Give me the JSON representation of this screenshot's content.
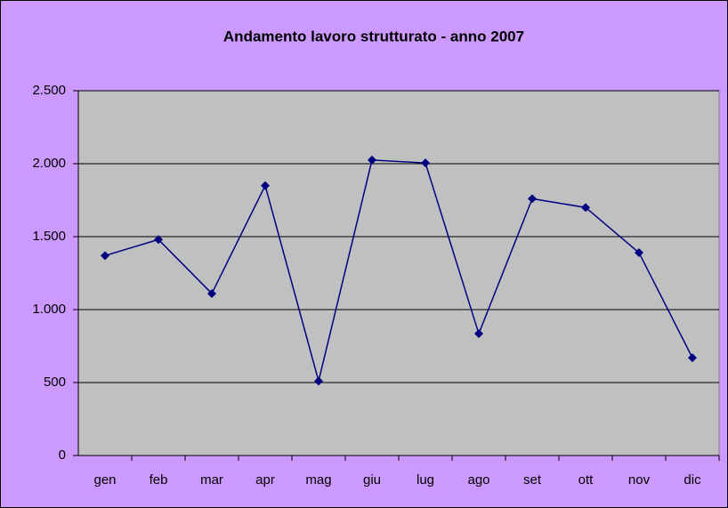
{
  "chart_data": {
    "type": "line",
    "title": "Andamento lavoro strutturato - anno 2007",
    "categories": [
      "gen",
      "feb",
      "mar",
      "apr",
      "mag",
      "giu",
      "lug",
      "ago",
      "set",
      "ott",
      "nov",
      "dic"
    ],
    "series": [
      {
        "color": "#000080",
        "values": [
          1370,
          1480,
          1110,
          1850,
          510,
          2025,
          2005,
          835,
          1760,
          1700,
          1390,
          670
        ]
      }
    ],
    "ylim": [
      0,
      2500
    ],
    "yticks": [
      0,
      500,
      {
        "value": 1000,
        "label": "1.000"
      },
      {
        "value": 1500,
        "label": "1.500"
      },
      {
        "value": 2000,
        "label": "2.000"
      },
      {
        "value": 2500,
        "label": "2.500"
      }
    ],
    "grid": true
  }
}
